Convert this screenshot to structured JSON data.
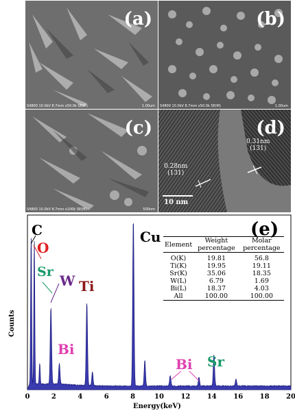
{
  "panels": {
    "a": {
      "label": "(a)",
      "caption": "S4800 10.0kV 8.7mm x50.0k SE(M)",
      "scale": "1.00um"
    },
    "b": {
      "label": "(b)",
      "caption": "S4800 10.0kV 8.7mm x50.0k SE(M)",
      "scale": "1.00um"
    },
    "c": {
      "label": "(c)",
      "caption": "S4800 10.0kV 8.7mm x100k SE(M)",
      "scale": "500nm"
    },
    "d": {
      "label": "(d)",
      "scale": "10 nm",
      "lattice_left_value": "0.28nm",
      "lattice_left_plane": "(131)",
      "lattice_right_value": "0.31nm",
      "lattice_right_plane": "(131)"
    }
  },
  "chart_data": {
    "type": "line",
    "label": "(e)",
    "xlabel": "Energy(keV)",
    "ylabel": "Counts",
    "xlim": [
      0,
      20
    ],
    "x_ticks": [
      "0",
      "2",
      "4",
      "6",
      "8",
      "10",
      "12",
      "14",
      "16",
      "18",
      "20"
    ],
    "series_color": "#2b2b9a",
    "peaks": [
      {
        "x": 0.28,
        "h": 0.87
      },
      {
        "x": 0.52,
        "h": 0.83
      },
      {
        "x": 0.93,
        "h": 0.12
      },
      {
        "x": 1.78,
        "h": 0.44
      },
      {
        "x": 2.42,
        "h": 0.12
      },
      {
        "x": 4.51,
        "h": 0.48
      },
      {
        "x": 4.93,
        "h": 0.08
      },
      {
        "x": 8.04,
        "h": 0.96
      },
      {
        "x": 8.91,
        "h": 0.15
      },
      {
        "x": 10.84,
        "h": 0.06
      },
      {
        "x": 13.02,
        "h": 0.05
      },
      {
        "x": 14.16,
        "h": 0.18
      },
      {
        "x": 15.83,
        "h": 0.04
      }
    ],
    "annotations": [
      {
        "text": "C",
        "color": "#000000"
      },
      {
        "text": "O",
        "color": "#e02020"
      },
      {
        "text": "Sr",
        "color": "#1a9a6a"
      },
      {
        "text": "W",
        "color": "#6a2a8a"
      },
      {
        "text": "Ti",
        "color": "#8b1a1a"
      },
      {
        "text": "Cu",
        "color": "#000000"
      },
      {
        "text": "Bi",
        "color": "#e040b0"
      },
      {
        "text": "Bi",
        "color": "#e040b0"
      },
      {
        "text": "Sr",
        "color": "#1a9a6a"
      }
    ],
    "table": {
      "headers": [
        "Element",
        "Weight percentage",
        "Molar percentage"
      ],
      "rows": [
        [
          "O(K)",
          "19.81",
          "56.8"
        ],
        [
          "Ti(K)",
          "19.95",
          "19.11"
        ],
        [
          "Sr(K)",
          "35.06",
          "18.35"
        ],
        [
          "W(L)",
          "6.79",
          "1.69"
        ],
        [
          "Bi(L)",
          "18.37",
          "4.03"
        ],
        [
          "All",
          "100.00",
          "100.00"
        ]
      ]
    }
  }
}
